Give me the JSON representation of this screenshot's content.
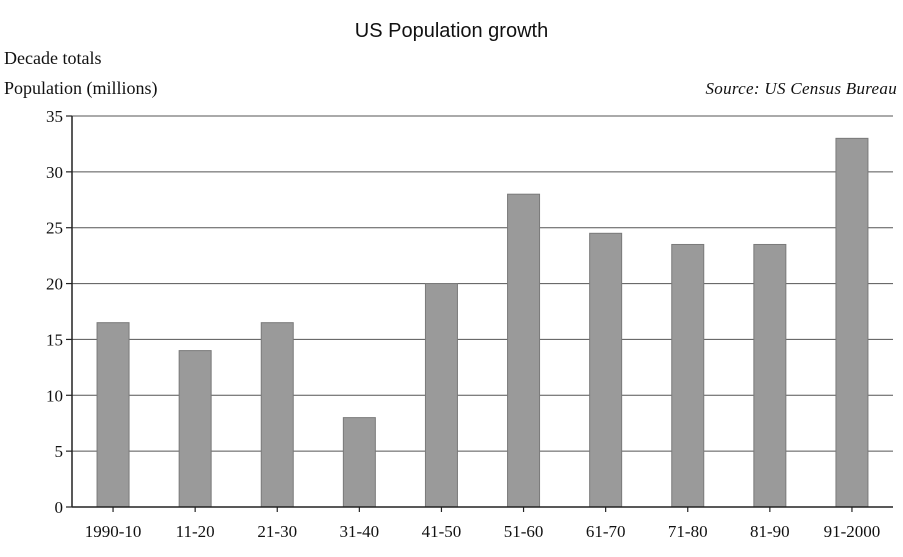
{
  "chart_data": {
    "type": "bar",
    "title": "US Population growth",
    "subtitle": "Decade totals",
    "ylabel": "Population (millions)",
    "source": "Source: US Census Bureau",
    "xlabel": "",
    "categories": [
      "1990-10",
      "11-20",
      "21-30",
      "31-40",
      "41-50",
      "51-60",
      "61-70",
      "71-80",
      "81-90",
      "91-2000"
    ],
    "values": [
      16.5,
      14,
      16.5,
      8,
      20,
      28,
      24.5,
      23.5,
      23.5,
      33
    ],
    "ylim": [
      0,
      35
    ],
    "yticks": [
      0,
      5,
      10,
      15,
      20,
      25,
      30,
      35
    ],
    "grid": true,
    "bar_color": "#9a9a9a",
    "bar_edge_color": "#7a7a7a"
  }
}
